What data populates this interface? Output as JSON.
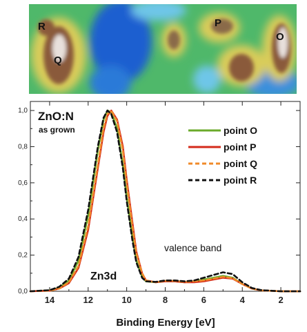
{
  "map": {
    "labels": [
      "R",
      "Q",
      "P",
      "O"
    ],
    "colors": {
      "background": "#4fb86a",
      "low": "#1f5fd0",
      "mid": "#6ec6e8",
      "warm": "#d9cc5a",
      "high": "#8a5a3a",
      "peak": "#e8e0dc"
    }
  },
  "chart_data": {
    "type": "line",
    "title": "ZnO:N",
    "subtitle": "as grown",
    "xlabel": "Binding Energy [eV]",
    "ylabel": "",
    "xlim": [
      15,
      1
    ],
    "ylim": [
      0,
      1.05
    ],
    "x_reversed": true,
    "xticks": [
      14,
      12,
      10,
      8,
      6,
      4,
      2
    ],
    "yticks": [
      "0,0",
      "0,2",
      "0,4",
      "0,6",
      "0,8",
      "1,0"
    ],
    "ytick_values": [
      0,
      0.2,
      0.4,
      0.6,
      0.8,
      1.0
    ],
    "annotations": [
      "Zn3d",
      "valence band"
    ],
    "legend_position": "top-right",
    "series": [
      {
        "name": "point O",
        "color": "#6aaa2a",
        "dash": "solid",
        "x": [
          15,
          14,
          13.5,
          13,
          12.5,
          12,
          11.5,
          11.2,
          11,
          10.8,
          10.5,
          10.2,
          10,
          9.7,
          9.5,
          9.2,
          9,
          8.5,
          8,
          7.5,
          7,
          6.5,
          6,
          5.5,
          5,
          4.5,
          4,
          3.5,
          3,
          2,
          1
        ],
        "y": [
          0.0,
          0.005,
          0.02,
          0.06,
          0.17,
          0.42,
          0.78,
          0.95,
          1.0,
          0.99,
          0.9,
          0.7,
          0.52,
          0.3,
          0.17,
          0.08,
          0.055,
          0.05,
          0.055,
          0.055,
          0.05,
          0.055,
          0.065,
          0.075,
          0.085,
          0.075,
          0.04,
          0.015,
          0.005,
          0.0,
          0.0
        ]
      },
      {
        "name": "point P",
        "color": "#d42a1a",
        "dash": "solid",
        "x": [
          15,
          14,
          13.5,
          13,
          12.5,
          12,
          11.5,
          11.2,
          11,
          10.8,
          10.5,
          10.2,
          10,
          9.7,
          9.5,
          9.2,
          9,
          8.5,
          8,
          7.5,
          7,
          6.5,
          6,
          5.5,
          5,
          4.5,
          4,
          3.5,
          3,
          2,
          1
        ],
        "y": [
          0.0,
          0.003,
          0.015,
          0.045,
          0.13,
          0.34,
          0.68,
          0.88,
          0.97,
          1.0,
          0.95,
          0.8,
          0.62,
          0.38,
          0.22,
          0.1,
          0.06,
          0.05,
          0.055,
          0.055,
          0.05,
          0.05,
          0.055,
          0.065,
          0.075,
          0.07,
          0.04,
          0.015,
          0.005,
          0.0,
          0.0
        ]
      },
      {
        "name": "point Q",
        "color": "#f08a2a",
        "dash": "dashed",
        "x": [
          15,
          14,
          13.5,
          13,
          12.5,
          12,
          11.5,
          11.2,
          11,
          10.8,
          10.5,
          10.2,
          10,
          9.7,
          9.5,
          9.2,
          9,
          8.5,
          8,
          7.5,
          7,
          6.5,
          6,
          5.5,
          5,
          4.5,
          4,
          3.5,
          3,
          2,
          1
        ],
        "y": [
          0.0,
          0.003,
          0.015,
          0.05,
          0.14,
          0.36,
          0.7,
          0.9,
          0.98,
          1.0,
          0.94,
          0.78,
          0.6,
          0.36,
          0.21,
          0.1,
          0.06,
          0.05,
          0.058,
          0.058,
          0.052,
          0.055,
          0.06,
          0.07,
          0.08,
          0.072,
          0.04,
          0.015,
          0.005,
          0.0,
          0.0
        ]
      },
      {
        "name": "point R",
        "color": "#111111",
        "dash": "dashed",
        "x": [
          15,
          14,
          13.5,
          13,
          12.5,
          12,
          11.5,
          11.2,
          11,
          10.8,
          10.5,
          10.2,
          10,
          9.7,
          9.5,
          9.2,
          9,
          8.5,
          8,
          7.5,
          7,
          6.5,
          6,
          5.5,
          5,
          4.5,
          4,
          3.5,
          3,
          2,
          1
        ],
        "y": [
          0.0,
          0.006,
          0.025,
          0.07,
          0.19,
          0.45,
          0.8,
          0.96,
          1.0,
          0.98,
          0.88,
          0.68,
          0.5,
          0.28,
          0.16,
          0.075,
          0.055,
          0.052,
          0.06,
          0.06,
          0.055,
          0.06,
          0.075,
          0.09,
          0.105,
          0.095,
          0.05,
          0.018,
          0.006,
          0.0,
          0.0
        ]
      }
    ]
  }
}
